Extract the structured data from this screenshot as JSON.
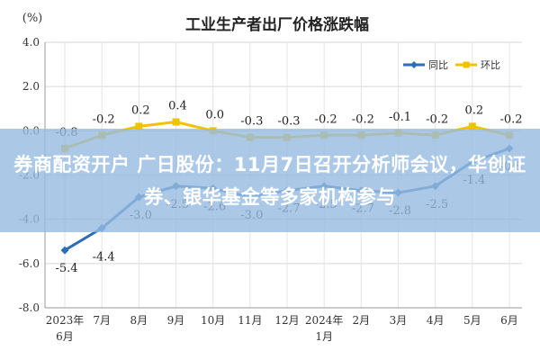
{
  "chart_data": {
    "type": "line",
    "title": "工业生产者出厂价格涨跌幅",
    "ylabel": "(%)",
    "ylim": [
      -8.0,
      4.0
    ],
    "yticks": [
      "4.0",
      "2.0",
      "0.0",
      "-2.0",
      "-4.0",
      "-6.0",
      "-8.0"
    ],
    "ytick_values": [
      4,
      2,
      0,
      -2,
      -4,
      -6,
      -8
    ],
    "categories": [
      "2023年\n6月",
      "7月",
      "8月",
      "9月",
      "10月",
      "11月",
      "12月",
      "2024年\n1月",
      "2月",
      "3月",
      "4月",
      "5月",
      "6月"
    ],
    "grid": true,
    "legend_position": "top-right",
    "series": [
      {
        "name": "同比",
        "color": "#2e6db4",
        "values": [
          -5.4,
          -4.4,
          -3.0,
          -2.5,
          -2.6,
          -3.0,
          -2.7,
          -2.5,
          -2.7,
          -2.8,
          -2.5,
          -1.4,
          -0.8
        ],
        "labels": [
          "-5.4",
          "-4.4",
          "-3.0",
          "-2.5",
          "-2.6",
          "-3.0",
          "-2.7",
          "-2.5",
          "-2.7",
          "-2.8",
          "-2.5",
          "-1.4",
          "-0.8"
        ]
      },
      {
        "name": "环比",
        "color": "#f2c200",
        "values": [
          -0.8,
          -0.2,
          0.2,
          0.4,
          0.0,
          -0.3,
          -0.3,
          -0.2,
          -0.2,
          -0.1,
          -0.2,
          0.2,
          -0.2
        ],
        "labels": [
          "-0.8",
          "-0.2",
          "0.2",
          "0.4",
          "0.0",
          "-0.3",
          "-0.3",
          "-0.2",
          "-0.2",
          "-0.1",
          "-0.2",
          "0.2",
          "-0.2"
        ]
      }
    ]
  },
  "banner": {
    "text": "券商配资开户 广日股份：11月7日召开分析师会议，华创证券、银华基金等多家机构参与"
  }
}
